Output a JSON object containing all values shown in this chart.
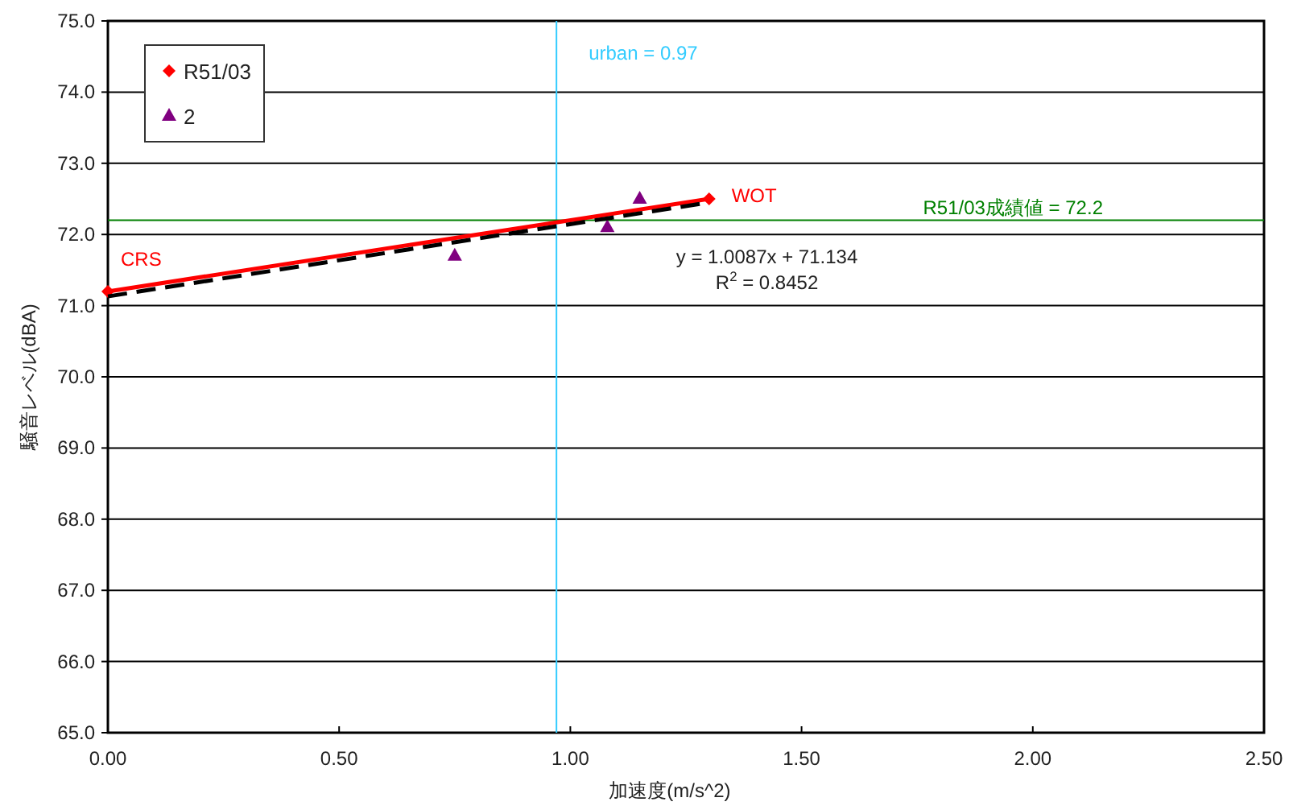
{
  "chart_data": {
    "type": "line",
    "xlabel": "加速度(m/s^2)",
    "ylabel": "騒音レベル(dBA)",
    "xlim": [
      0,
      2.5
    ],
    "ylim": [
      65,
      75
    ],
    "xticks": [
      {
        "value": 0,
        "label": "0.00"
      },
      {
        "value": 0.5,
        "label": "0.50"
      },
      {
        "value": 1,
        "label": "1.00"
      },
      {
        "value": 1.5,
        "label": "1.50"
      },
      {
        "value": 2,
        "label": "2.00"
      },
      {
        "value": 2.5,
        "label": "2.50"
      }
    ],
    "yticks": [
      {
        "value": 65,
        "label": "65.0"
      },
      {
        "value": 66,
        "label": "66.0"
      },
      {
        "value": 67,
        "label": "67.0"
      },
      {
        "value": 68,
        "label": "68.0"
      },
      {
        "value": 69,
        "label": "69.0"
      },
      {
        "value": 70,
        "label": "70.0"
      },
      {
        "value": 71,
        "label": "71.0"
      },
      {
        "value": 72,
        "label": "72.0"
      },
      {
        "value": 73,
        "label": "73.0"
      },
      {
        "value": 74,
        "label": "74.0"
      },
      {
        "value": 75,
        "label": "75.0"
      }
    ],
    "grid": "y",
    "legend": "top left",
    "series": [
      {
        "name": "R51/03",
        "type": "line",
        "color": "#ff0000",
        "marker": "diamond",
        "x": [
          0,
          1.3
        ],
        "values": [
          71.2,
          72.5
        ]
      },
      {
        "name": "2",
        "type": "scatter",
        "color": "#800080",
        "marker": "triangle",
        "x": [
          0.75,
          1.08,
          1.15
        ],
        "values": [
          71.7,
          72.1,
          72.5
        ]
      },
      {
        "type": "line",
        "color": "#000000",
        "marker": "none",
        "line_style": "dashed",
        "x": [
          0,
          1.3
        ],
        "values": [
          71.13,
          72.45
        ]
      }
    ],
    "ref_lines": [
      {
        "axis": "x",
        "value": 0.97,
        "label": "urban = 0.97",
        "color": "#33ccff"
      },
      {
        "axis": "y",
        "value": 72.2,
        "label": "R51/03成績値 = 72.2",
        "color": "#008000"
      }
    ],
    "annotations": [
      {
        "text": "CRS",
        "x": 0,
        "y": 71.2
      },
      {
        "text": "WOT",
        "x": 1.3,
        "y": 72.5
      },
      "y = 1.0087x + 71.134",
      "R$^{2}$ = 0.8452"
    ]
  }
}
